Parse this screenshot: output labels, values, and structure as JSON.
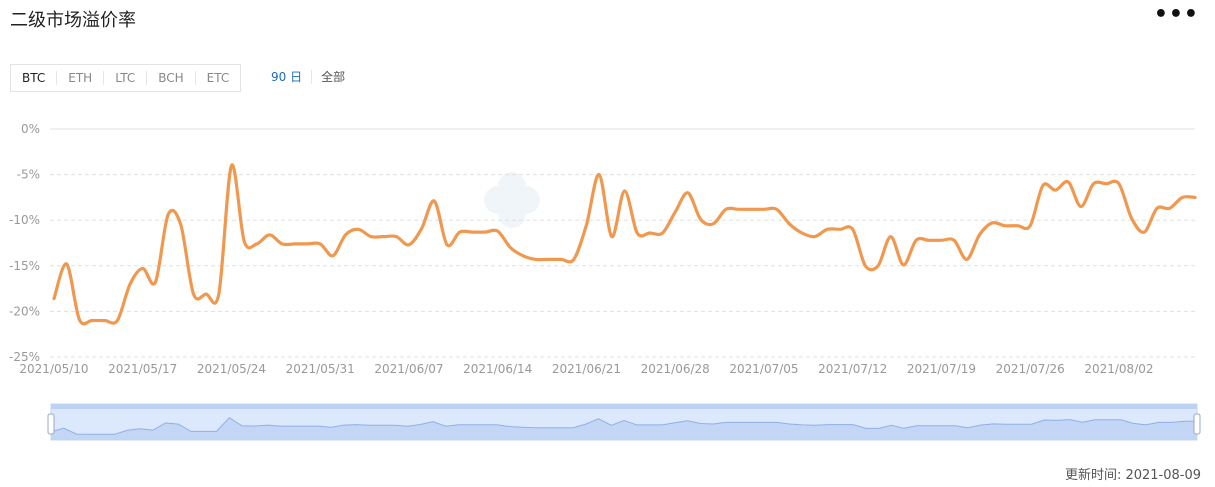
{
  "header": {
    "title": "二级市场溢价率",
    "more_label": "•••"
  },
  "coin_tabs": [
    {
      "label": "BTC",
      "active": true
    },
    {
      "label": "ETH",
      "active": false
    },
    {
      "label": "LTC",
      "active": false
    },
    {
      "label": "BCH",
      "active": false
    },
    {
      "label": "ETC",
      "active": false
    }
  ],
  "range_tabs": [
    {
      "label": "90 日",
      "active": true
    },
    {
      "label": "全部",
      "active": false
    }
  ],
  "footer": {
    "updated": "更新时间: 2021-08-09"
  },
  "colors": {
    "line": "#f0984f",
    "accent": "#1a6bb8",
    "navigator": "#cfe0fa"
  },
  "chart_data": {
    "type": "line",
    "title": "",
    "xlabel": "",
    "ylabel": "",
    "ylim": [
      -25,
      0
    ],
    "y_ticks": [
      "0%",
      "-5%",
      "-10%",
      "-15%",
      "-20%",
      "-25%"
    ],
    "x_ticks": [
      "2021/05/10",
      "2021/05/17",
      "2021/05/24",
      "2021/05/31",
      "2021/06/07",
      "2021/06/14",
      "2021/06/21",
      "2021/06/28",
      "2021/07/05",
      "2021/07/12",
      "2021/07/19",
      "2021/07/26",
      "2021/08/02"
    ],
    "grid": true,
    "series": [
      {
        "name": "",
        "x": [
          "2021-05-10",
          "2021-05-11",
          "2021-05-12",
          "2021-05-13",
          "2021-05-14",
          "2021-05-15",
          "2021-05-16",
          "2021-05-17",
          "2021-05-18",
          "2021-05-19",
          "2021-05-20",
          "2021-05-21",
          "2021-05-22",
          "2021-05-23",
          "2021-05-24",
          "2021-05-25",
          "2021-05-26",
          "2021-05-27",
          "2021-05-28",
          "2021-05-29",
          "2021-05-30",
          "2021-05-31",
          "2021-06-01",
          "2021-06-02",
          "2021-06-03",
          "2021-06-04",
          "2021-06-05",
          "2021-06-06",
          "2021-06-07",
          "2021-06-08",
          "2021-06-09",
          "2021-06-10",
          "2021-06-11",
          "2021-06-12",
          "2021-06-13",
          "2021-06-14",
          "2021-06-15",
          "2021-06-16",
          "2021-06-17",
          "2021-06-18",
          "2021-06-19",
          "2021-06-20",
          "2021-06-21",
          "2021-06-22",
          "2021-06-23",
          "2021-06-24",
          "2021-06-25",
          "2021-06-26",
          "2021-06-27",
          "2021-06-28",
          "2021-06-29",
          "2021-06-30",
          "2021-07-01",
          "2021-07-02",
          "2021-07-03",
          "2021-07-04",
          "2021-07-05",
          "2021-07-06",
          "2021-07-07",
          "2021-07-08",
          "2021-07-09",
          "2021-07-10",
          "2021-07-11",
          "2021-07-12",
          "2021-07-13",
          "2021-07-14",
          "2021-07-15",
          "2021-07-16",
          "2021-07-17",
          "2021-07-18",
          "2021-07-19",
          "2021-07-20",
          "2021-07-21",
          "2021-07-22",
          "2021-07-23",
          "2021-07-24",
          "2021-07-25",
          "2021-07-26",
          "2021-07-27",
          "2021-07-28",
          "2021-07-29",
          "2021-07-30",
          "2021-07-31",
          "2021-08-01",
          "2021-08-02",
          "2021-08-03",
          "2021-08-04",
          "2021-08-05",
          "2021-08-06",
          "2021-08-07",
          "2021-08-08"
        ],
        "values": [
          -18.6,
          -14.8,
          -20.9,
          -21.0,
          -21.0,
          -21.0,
          -17.0,
          -15.3,
          -16.8,
          -9.4,
          -10.5,
          -18.1,
          -18.1,
          -18.1,
          -4.0,
          -12.3,
          -12.6,
          -11.6,
          -12.6,
          -12.6,
          -12.6,
          -12.6,
          -13.9,
          -11.6,
          -11.0,
          -11.8,
          -11.8,
          -11.8,
          -12.7,
          -10.9,
          -7.9,
          -12.7,
          -11.3,
          -11.3,
          -11.3,
          -11.2,
          -13.0,
          -13.9,
          -14.3,
          -14.3,
          -14.3,
          -14.3,
          -10.5,
          -5.0,
          -11.8,
          -6.8,
          -11.4,
          -11.4,
          -11.4,
          -9.1,
          -7.0,
          -9.9,
          -10.4,
          -8.8,
          -8.8,
          -8.8,
          -8.8,
          -8.8,
          -10.4,
          -11.4,
          -11.8,
          -11.0,
          -11.0,
          -11.0,
          -15.0,
          -15.0,
          -11.8,
          -14.9,
          -12.2,
          -12.2,
          -12.2,
          -12.2,
          -14.3,
          -11.6,
          -10.3,
          -10.6,
          -10.6,
          -10.6,
          -6.2,
          -6.7,
          -5.8,
          -8.5,
          -6.0,
          -6.0,
          -6.0,
          -9.8,
          -11.3,
          -8.7,
          -8.7,
          -7.5,
          -7.5
        ]
      }
    ]
  }
}
